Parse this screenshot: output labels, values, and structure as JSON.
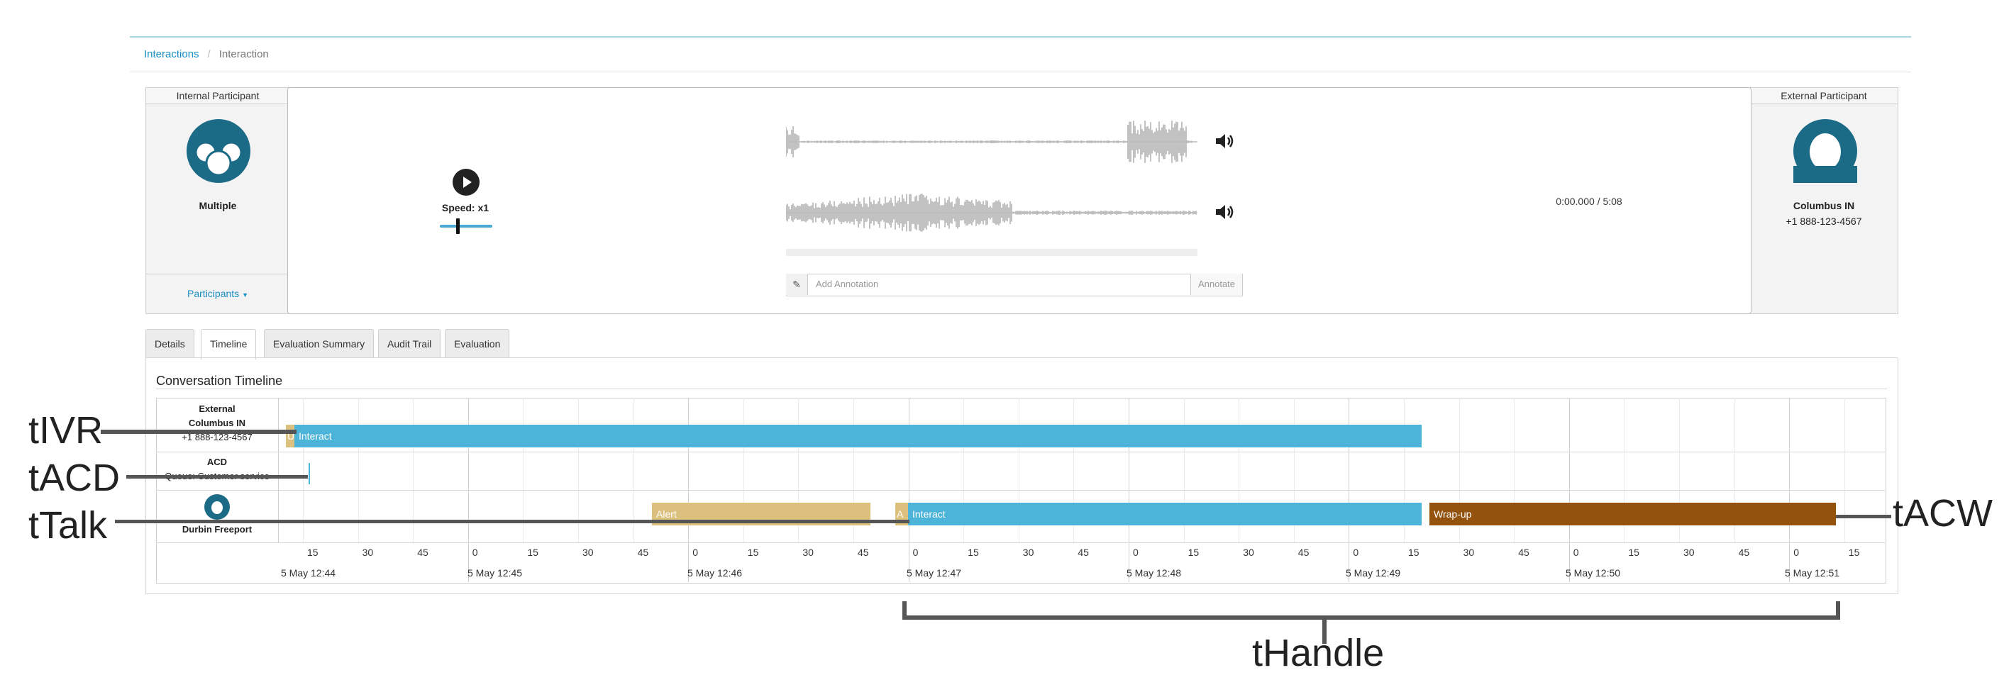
{
  "breadcrumb": {
    "link": "Interactions",
    "separator": "/",
    "current": "Interaction"
  },
  "internal": {
    "header": "Internal Participant",
    "name": "Multiple",
    "dropdown_label": "Participants"
  },
  "external": {
    "header": "External Participant",
    "name": "Columbus IN",
    "phone": "+1 888-123-4567"
  },
  "player": {
    "speed_label": "Speed: x1",
    "speed_value": 1,
    "time": "0:00.000 / 5:08",
    "annotation_placeholder": "Add Annotation",
    "annotate_label": "Annotate"
  },
  "tabs": [
    "Details",
    "Timeline",
    "Evaluation Summary",
    "Audit Trail",
    "Evaluation"
  ],
  "active_tab": "Timeline",
  "timeline": {
    "title": "Conversation Timeline",
    "rows": [
      {
        "line1": "External",
        "line2": "Columbus IN",
        "line3": "+1 888-123-4567"
      },
      {
        "line1": "ACD",
        "line2": "Queue: Customer service"
      },
      {
        "line2": "Durbin Freeport"
      }
    ],
    "bars": {
      "row1_small": "U",
      "row1_interact": "Interact",
      "alert": "Alert",
      "row3_small": "A",
      "row3_interact": "Interact",
      "wrapup": "Wrap-up"
    },
    "ticks": [
      "15",
      "30",
      "45",
      "0",
      "15",
      "30",
      "45",
      "0",
      "15",
      "30",
      "45",
      "0",
      "15",
      "30",
      "45",
      "0",
      "15",
      "30",
      "45",
      "0",
      "15",
      "30",
      "45",
      "0",
      "15",
      "30",
      "45",
      "0",
      "15"
    ],
    "dates": [
      "5 May 12:44",
      "5 May 12:45",
      "5 May 12:46",
      "5 May 12:47",
      "5 May 12:48",
      "5 May 12:49",
      "5 May 12:50",
      "5 May 12:51"
    ]
  },
  "callouts": {
    "ivr": "tIVR",
    "acd": "tACD",
    "talk": "tTalk",
    "acw": "tACW",
    "handle": "tHandle"
  },
  "colors": {
    "accent": "#1a8fc4",
    "interact": "#4cb3d9",
    "alert": "#dcc07e",
    "wrapup": "#93520d",
    "avatar": "#1b6a86"
  }
}
